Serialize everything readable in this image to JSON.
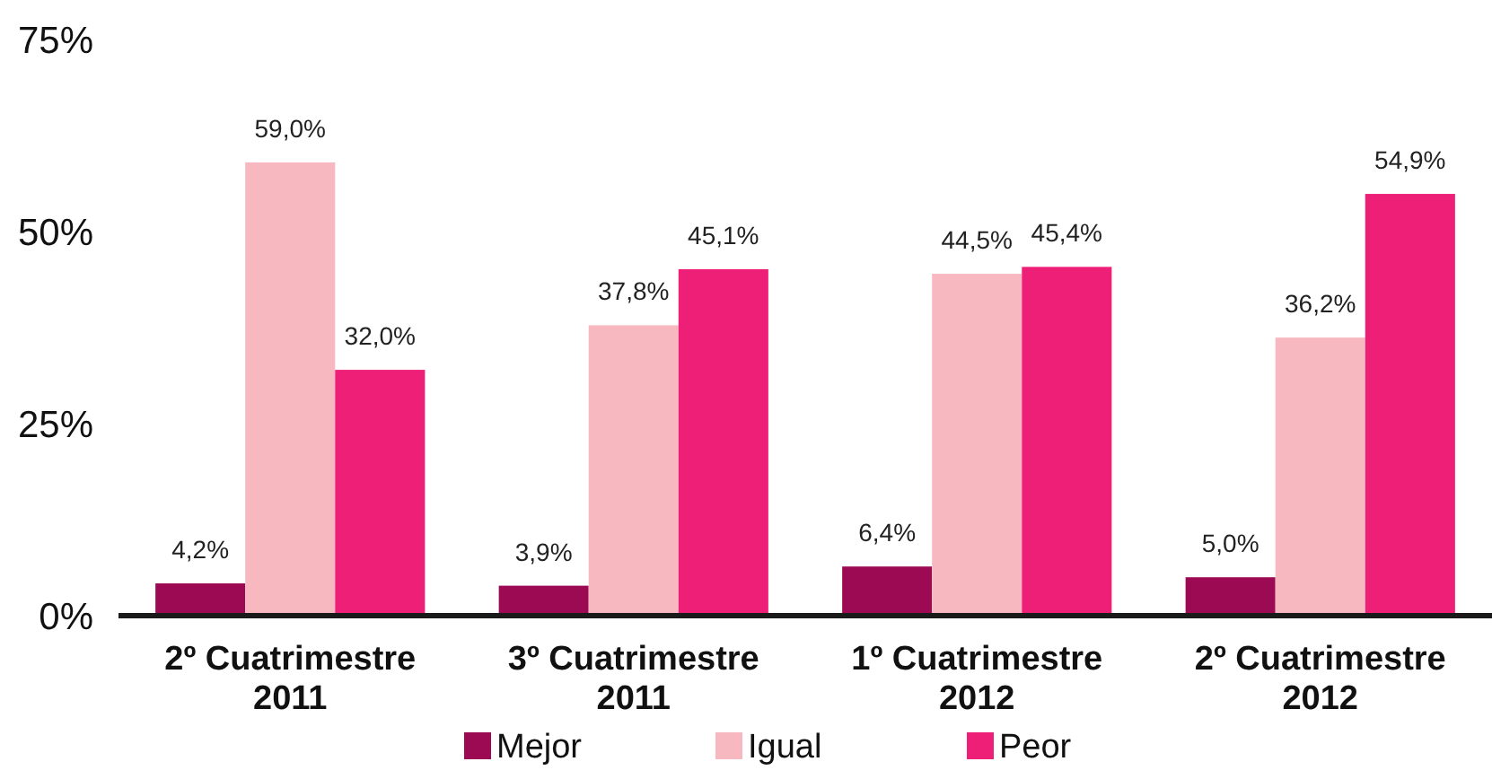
{
  "chart_data": {
    "type": "bar",
    "categories": [
      "2º Cuatrimestre 2011",
      "3º Cuatrimestre 2011",
      "1º Cuatrimestre 2012",
      "2º Cuatrimestre 2012"
    ],
    "series": [
      {
        "name": "Mejor",
        "color": "#9b0a52",
        "values": [
          4.2,
          3.9,
          6.4,
          5.0
        ],
        "value_labels": [
          "4,2%",
          "3,9%",
          "6,4%",
          "5,0%"
        ]
      },
      {
        "name": "Igual",
        "color": "#f7b9bf",
        "values": [
          59.0,
          37.8,
          44.5,
          36.2
        ],
        "value_labels": [
          "59,0%",
          "37,8%",
          "44,5%",
          "36,2%"
        ]
      },
      {
        "name": "Peor",
        "color": "#ee1f77",
        "values": [
          32.0,
          45.1,
          45.4,
          54.9
        ],
        "value_labels": [
          "32,0%",
          "45,1%",
          "45,4%",
          "54,9%"
        ]
      }
    ],
    "ylim": [
      0,
      75
    ],
    "yticks": [
      {
        "value": 0,
        "label": "0%"
      },
      {
        "value": 25,
        "label": "25%"
      },
      {
        "value": 50,
        "label": "50%"
      },
      {
        "value": 75,
        "label": "75%"
      }
    ],
    "grid": false,
    "legend": "bottom"
  }
}
